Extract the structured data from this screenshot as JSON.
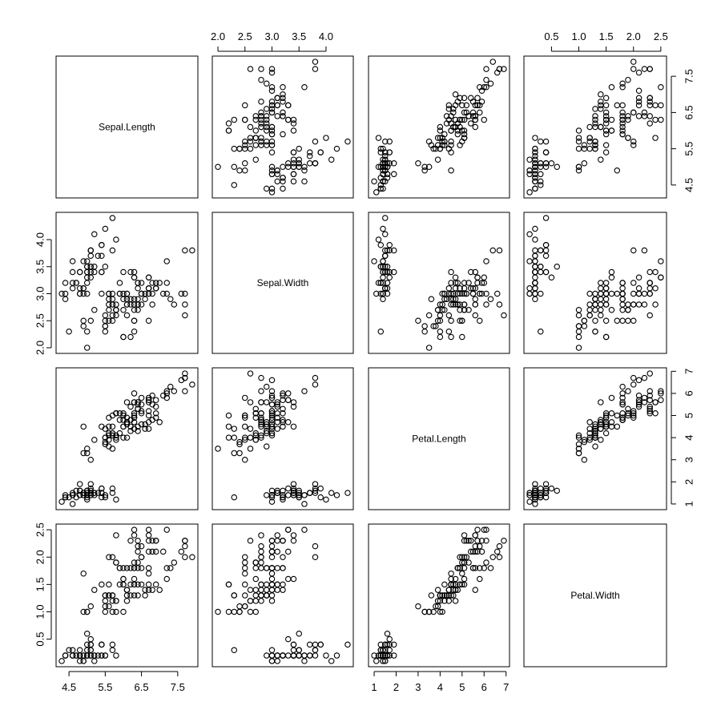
{
  "chart_data": {
    "type": "scatter",
    "variables": [
      "Sepal.Length",
      "Sepal.Width",
      "Petal.Length",
      "Petal.Width"
    ],
    "ranges": [
      [
        4.3,
        7.9
      ],
      [
        2.0,
        4.4
      ],
      [
        1.0,
        6.9
      ],
      [
        0.1,
        2.5
      ]
    ],
    "ticks": [
      [
        "4.5",
        "5.5",
        "6.5",
        "7.5"
      ],
      [
        "2.0",
        "2.5",
        "3.0",
        "3.5",
        "4.0"
      ],
      [
        "1",
        "2",
        "3",
        "4",
        "5",
        "6",
        "7"
      ],
      [
        "0.5",
        "1.0",
        "1.5",
        "2.0",
        "2.5"
      ]
    ],
    "outer_axes": {
      "top": [
        {
          "variable": 1,
          "ticks": [
            "2.0",
            "2.5",
            "3.0",
            "3.5",
            "4.0"
          ]
        },
        {
          "variable": 3,
          "ticks": [
            "0.5",
            "1.0",
            "1.5",
            "2.0",
            "2.5"
          ]
        }
      ],
      "bottom": [
        {
          "variable": 0,
          "ticks": [
            "4.5",
            "5.5",
            "6.5",
            "7.5"
          ]
        },
        {
          "variable": 2,
          "ticks": [
            "1",
            "2",
            "3",
            "4",
            "5",
            "6",
            "7"
          ]
        }
      ],
      "left": [
        {
          "variable": 1,
          "ticks": [
            "2.0",
            "2.5",
            "3.0",
            "3.5",
            "4.0"
          ]
        },
        {
          "variable": 3,
          "ticks": [
            "0.5",
            "1.0",
            "1.5",
            "2.0",
            "2.5"
          ]
        }
      ],
      "right": [
        {
          "variable": 0,
          "ticks": [
            "4.5",
            "5.5",
            "6.5",
            "7.5"
          ]
        },
        {
          "variable": 2,
          "ticks": [
            "1",
            "2",
            "3",
            "4",
            "5",
            "6",
            "7"
          ]
        }
      ]
    },
    "grid": false,
    "marker": "open-circle",
    "observations": [
      [
        5.1,
        3.5,
        1.4,
        0.2
      ],
      [
        4.9,
        3.0,
        1.4,
        0.2
      ],
      [
        4.7,
        3.2,
        1.3,
        0.2
      ],
      [
        4.6,
        3.1,
        1.5,
        0.2
      ],
      [
        5.0,
        3.6,
        1.4,
        0.2
      ],
      [
        5.4,
        3.9,
        1.7,
        0.4
      ],
      [
        4.6,
        3.4,
        1.4,
        0.3
      ],
      [
        5.0,
        3.4,
        1.5,
        0.2
      ],
      [
        4.4,
        2.9,
        1.4,
        0.2
      ],
      [
        4.9,
        3.1,
        1.5,
        0.1
      ],
      [
        5.4,
        3.7,
        1.5,
        0.2
      ],
      [
        4.8,
        3.4,
        1.6,
        0.2
      ],
      [
        4.8,
        3.0,
        1.4,
        0.1
      ],
      [
        4.3,
        3.0,
        1.1,
        0.1
      ],
      [
        5.8,
        4.0,
        1.2,
        0.2
      ],
      [
        5.7,
        4.4,
        1.5,
        0.4
      ],
      [
        5.4,
        3.9,
        1.3,
        0.4
      ],
      [
        5.1,
        3.5,
        1.4,
        0.3
      ],
      [
        5.7,
        3.8,
        1.7,
        0.3
      ],
      [
        5.1,
        3.8,
        1.5,
        0.3
      ],
      [
        5.4,
        3.4,
        1.7,
        0.2
      ],
      [
        5.1,
        3.7,
        1.5,
        0.4
      ],
      [
        4.6,
        3.6,
        1.0,
        0.2
      ],
      [
        5.1,
        3.3,
        1.7,
        0.5
      ],
      [
        4.8,
        3.4,
        1.9,
        0.2
      ],
      [
        5.0,
        3.0,
        1.6,
        0.2
      ],
      [
        5.0,
        3.4,
        1.6,
        0.4
      ],
      [
        5.2,
        3.5,
        1.5,
        0.2
      ],
      [
        5.2,
        3.4,
        1.4,
        0.2
      ],
      [
        4.7,
        3.2,
        1.6,
        0.2
      ],
      [
        4.8,
        3.1,
        1.6,
        0.2
      ],
      [
        5.4,
        3.4,
        1.5,
        0.4
      ],
      [
        5.2,
        4.1,
        1.5,
        0.1
      ],
      [
        5.5,
        4.2,
        1.4,
        0.2
      ],
      [
        4.9,
        3.1,
        1.5,
        0.2
      ],
      [
        5.0,
        3.2,
        1.2,
        0.2
      ],
      [
        5.5,
        3.5,
        1.3,
        0.2
      ],
      [
        4.9,
        3.6,
        1.4,
        0.1
      ],
      [
        4.4,
        3.0,
        1.3,
        0.2
      ],
      [
        5.1,
        3.4,
        1.5,
        0.2
      ],
      [
        5.0,
        3.5,
        1.3,
        0.3
      ],
      [
        4.5,
        2.3,
        1.3,
        0.3
      ],
      [
        4.4,
        3.2,
        1.3,
        0.2
      ],
      [
        5.0,
        3.5,
        1.6,
        0.6
      ],
      [
        5.1,
        3.8,
        1.9,
        0.4
      ],
      [
        4.8,
        3.0,
        1.4,
        0.3
      ],
      [
        5.1,
        3.8,
        1.6,
        0.2
      ],
      [
        4.6,
        3.2,
        1.4,
        0.2
      ],
      [
        5.3,
        3.7,
        1.5,
        0.2
      ],
      [
        5.0,
        3.3,
        1.4,
        0.2
      ],
      [
        7.0,
        3.2,
        4.7,
        1.4
      ],
      [
        6.4,
        3.2,
        4.5,
        1.5
      ],
      [
        6.9,
        3.1,
        4.9,
        1.5
      ],
      [
        5.5,
        2.3,
        4.0,
        1.3
      ],
      [
        6.5,
        2.8,
        4.6,
        1.5
      ],
      [
        5.7,
        2.8,
        4.5,
        1.3
      ],
      [
        6.3,
        3.3,
        4.7,
        1.6
      ],
      [
        4.9,
        2.4,
        3.3,
        1.0
      ],
      [
        6.6,
        2.9,
        4.6,
        1.3
      ],
      [
        5.2,
        2.7,
        3.9,
        1.4
      ],
      [
        5.0,
        2.0,
        3.5,
        1.0
      ],
      [
        5.9,
        3.0,
        4.2,
        1.5
      ],
      [
        6.0,
        2.2,
        4.0,
        1.0
      ],
      [
        6.1,
        2.9,
        4.7,
        1.4
      ],
      [
        5.6,
        2.9,
        3.6,
        1.3
      ],
      [
        6.7,
        3.1,
        4.4,
        1.4
      ],
      [
        5.6,
        3.0,
        4.5,
        1.5
      ],
      [
        5.8,
        2.7,
        4.1,
        1.0
      ],
      [
        6.2,
        2.2,
        4.5,
        1.5
      ],
      [
        5.6,
        2.5,
        3.9,
        1.1
      ],
      [
        5.9,
        3.2,
        4.8,
        1.8
      ],
      [
        6.1,
        2.8,
        4.0,
        1.3
      ],
      [
        6.3,
        2.5,
        4.9,
        1.5
      ],
      [
        6.1,
        2.8,
        4.7,
        1.2
      ],
      [
        6.4,
        2.9,
        4.3,
        1.3
      ],
      [
        6.6,
        3.0,
        4.4,
        1.4
      ],
      [
        6.8,
        2.8,
        4.8,
        1.4
      ],
      [
        6.7,
        3.0,
        5.0,
        1.7
      ],
      [
        6.0,
        2.9,
        4.5,
        1.5
      ],
      [
        5.7,
        2.6,
        3.5,
        1.0
      ],
      [
        5.5,
        2.4,
        3.8,
        1.1
      ],
      [
        5.5,
        2.4,
        3.7,
        1.0
      ],
      [
        5.8,
        2.7,
        3.9,
        1.2
      ],
      [
        6.0,
        2.7,
        5.1,
        1.6
      ],
      [
        5.4,
        3.0,
        4.5,
        1.5
      ],
      [
        6.0,
        3.4,
        4.5,
        1.6
      ],
      [
        6.7,
        3.1,
        4.7,
        1.5
      ],
      [
        6.3,
        2.3,
        4.4,
        1.3
      ],
      [
        5.6,
        3.0,
        4.1,
        1.3
      ],
      [
        5.5,
        2.5,
        4.0,
        1.3
      ],
      [
        5.5,
        2.6,
        4.4,
        1.2
      ],
      [
        6.1,
        3.0,
        4.6,
        1.4
      ],
      [
        5.8,
        2.6,
        4.0,
        1.2
      ],
      [
        5.0,
        2.3,
        3.3,
        1.0
      ],
      [
        5.6,
        2.7,
        4.2,
        1.3
      ],
      [
        5.7,
        3.0,
        4.2,
        1.2
      ],
      [
        5.7,
        2.9,
        4.2,
        1.3
      ],
      [
        6.2,
        2.9,
        4.3,
        1.3
      ],
      [
        5.1,
        2.5,
        3.0,
        1.1
      ],
      [
        5.7,
        2.8,
        4.1,
        1.3
      ],
      [
        6.3,
        3.3,
        6.0,
        2.5
      ],
      [
        5.8,
        2.7,
        5.1,
        1.9
      ],
      [
        7.1,
        3.0,
        5.9,
        2.1
      ],
      [
        6.3,
        2.9,
        5.6,
        1.8
      ],
      [
        6.5,
        3.0,
        5.8,
        2.2
      ],
      [
        7.6,
        3.0,
        6.6,
        2.1
      ],
      [
        4.9,
        2.5,
        4.5,
        1.7
      ],
      [
        7.3,
        2.9,
        6.3,
        1.8
      ],
      [
        6.7,
        2.5,
        5.8,
        1.8
      ],
      [
        7.2,
        3.6,
        6.1,
        2.5
      ],
      [
        6.5,
        3.2,
        5.1,
        2.0
      ],
      [
        6.4,
        2.7,
        5.3,
        1.9
      ],
      [
        6.8,
        3.0,
        5.5,
        2.1
      ],
      [
        5.7,
        2.5,
        5.0,
        2.0
      ],
      [
        5.8,
        2.8,
        5.1,
        2.4
      ],
      [
        6.4,
        3.2,
        5.3,
        2.3
      ],
      [
        6.5,
        3.0,
        5.5,
        1.8
      ],
      [
        7.7,
        3.8,
        6.7,
        2.2
      ],
      [
        7.7,
        2.6,
        6.9,
        2.3
      ],
      [
        6.0,
        2.2,
        5.0,
        1.5
      ],
      [
        6.9,
        3.2,
        5.7,
        2.3
      ],
      [
        5.6,
        2.8,
        4.9,
        2.0
      ],
      [
        7.7,
        2.8,
        6.7,
        2.0
      ],
      [
        6.3,
        2.7,
        4.9,
        1.8
      ],
      [
        6.7,
        3.3,
        5.7,
        2.1
      ],
      [
        7.2,
        3.2,
        6.0,
        1.8
      ],
      [
        6.2,
        2.8,
        4.8,
        1.8
      ],
      [
        6.1,
        3.0,
        4.9,
        1.8
      ],
      [
        6.4,
        2.8,
        5.6,
        2.1
      ],
      [
        7.2,
        3.0,
        5.8,
        1.6
      ],
      [
        7.4,
        2.8,
        6.1,
        1.9
      ],
      [
        7.9,
        3.8,
        6.4,
        2.0
      ],
      [
        6.4,
        2.8,
        5.6,
        2.2
      ],
      [
        6.3,
        2.8,
        5.1,
        1.5
      ],
      [
        6.1,
        2.6,
        5.6,
        1.4
      ],
      [
        7.7,
        3.0,
        6.1,
        2.3
      ],
      [
        6.3,
        3.4,
        5.6,
        2.4
      ],
      [
        6.4,
        3.1,
        5.5,
        1.8
      ],
      [
        6.0,
        3.0,
        4.8,
        1.8
      ],
      [
        6.9,
        3.1,
        5.4,
        2.1
      ],
      [
        6.7,
        3.1,
        5.6,
        2.4
      ],
      [
        6.9,
        3.1,
        5.1,
        2.3
      ],
      [
        5.8,
        2.7,
        5.1,
        1.9
      ],
      [
        6.8,
        3.2,
        5.9,
        2.3
      ],
      [
        6.7,
        3.3,
        5.7,
        2.5
      ],
      [
        6.7,
        3.0,
        5.2,
        2.3
      ],
      [
        6.3,
        2.5,
        5.0,
        1.9
      ],
      [
        6.5,
        3.0,
        5.2,
        2.0
      ],
      [
        6.2,
        3.4,
        5.4,
        2.3
      ],
      [
        5.9,
        3.0,
        5.1,
        1.8
      ]
    ]
  }
}
